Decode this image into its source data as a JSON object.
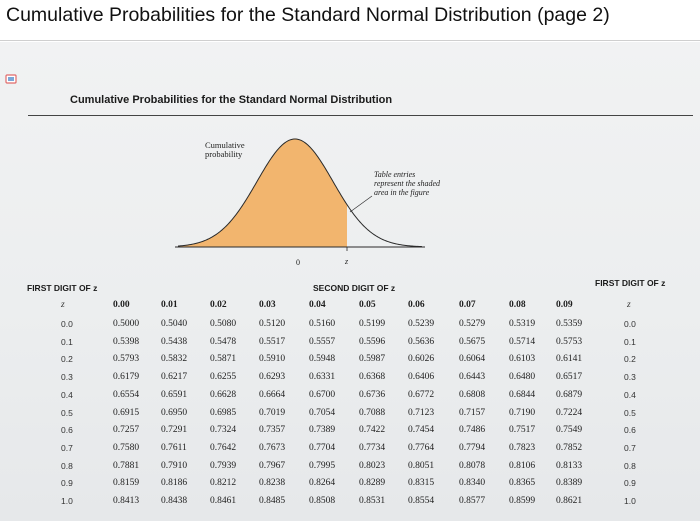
{
  "page_title": "Cumulative Probabilities for the Standard Normal Distribution (page 2)",
  "doc_title": "Cumulative Probabilities for the Standard Normal Distribution",
  "figure": {
    "cumulative_label": [
      "Cumulative",
      "probability"
    ],
    "table_label": [
      "Table entries",
      "represent the shaded",
      "area in the figure"
    ],
    "zero_label": "0",
    "z_label": "z",
    "shade_color": "#F2B56E"
  },
  "table": {
    "first_digit_left": "FIRST DIGIT OF z",
    "first_digit_right": "FIRST DIGIT OF z",
    "second_digit": "SECOND DIGIT OF z",
    "z_header": "z",
    "columns": [
      "0.00",
      "0.01",
      "0.02",
      "0.03",
      "0.04",
      "0.05",
      "0.06",
      "0.07",
      "0.08",
      "0.09"
    ],
    "rows": [
      {
        "z": "0.0",
        "values": [
          "0.5000",
          "0.5040",
          "0.5080",
          "0.5120",
          "0.5160",
          "0.5199",
          "0.5239",
          "0.5279",
          "0.5319",
          "0.5359"
        ]
      },
      {
        "z": "0.1",
        "values": [
          "0.5398",
          "0.5438",
          "0.5478",
          "0.5517",
          "0.5557",
          "0.5596",
          "0.5636",
          "0.5675",
          "0.5714",
          "0.5753"
        ]
      },
      {
        "z": "0.2",
        "values": [
          "0.5793",
          "0.5832",
          "0.5871",
          "0.5910",
          "0.5948",
          "0.5987",
          "0.6026",
          "0.6064",
          "0.6103",
          "0.6141"
        ]
      },
      {
        "z": "0.3",
        "values": [
          "0.6179",
          "0.6217",
          "0.6255",
          "0.6293",
          "0.6331",
          "0.6368",
          "0.6406",
          "0.6443",
          "0.6480",
          "0.6517"
        ]
      },
      {
        "z": "0.4",
        "values": [
          "0.6554",
          "0.6591",
          "0.6628",
          "0.6664",
          "0.6700",
          "0.6736",
          "0.6772",
          "0.6808",
          "0.6844",
          "0.6879"
        ]
      },
      {
        "z": "0.5",
        "values": [
          "0.6915",
          "0.6950",
          "0.6985",
          "0.7019",
          "0.7054",
          "0.7088",
          "0.7123",
          "0.7157",
          "0.7190",
          "0.7224"
        ]
      },
      {
        "z": "0.6",
        "values": [
          "0.7257",
          "0.7291",
          "0.7324",
          "0.7357",
          "0.7389",
          "0.7422",
          "0.7454",
          "0.7486",
          "0.7517",
          "0.7549"
        ]
      },
      {
        "z": "0.7",
        "values": [
          "0.7580",
          "0.7611",
          "0.7642",
          "0.7673",
          "0.7704",
          "0.7734",
          "0.7764",
          "0.7794",
          "0.7823",
          "0.7852"
        ]
      },
      {
        "z": "0.8",
        "values": [
          "0.7881",
          "0.7910",
          "0.7939",
          "0.7967",
          "0.7995",
          "0.8023",
          "0.8051",
          "0.8078",
          "0.8106",
          "0.8133"
        ]
      },
      {
        "z": "0.9",
        "values": [
          "0.8159",
          "0.8186",
          "0.8212",
          "0.8238",
          "0.8264",
          "0.8289",
          "0.8315",
          "0.8340",
          "0.8365",
          "0.8389"
        ]
      },
      {
        "z": "1.0",
        "values": [
          "0.8413",
          "0.8438",
          "0.8461",
          "0.8485",
          "0.8508",
          "0.8531",
          "0.8554",
          "0.8577",
          "0.8599",
          "0.8621"
        ]
      }
    ]
  }
}
